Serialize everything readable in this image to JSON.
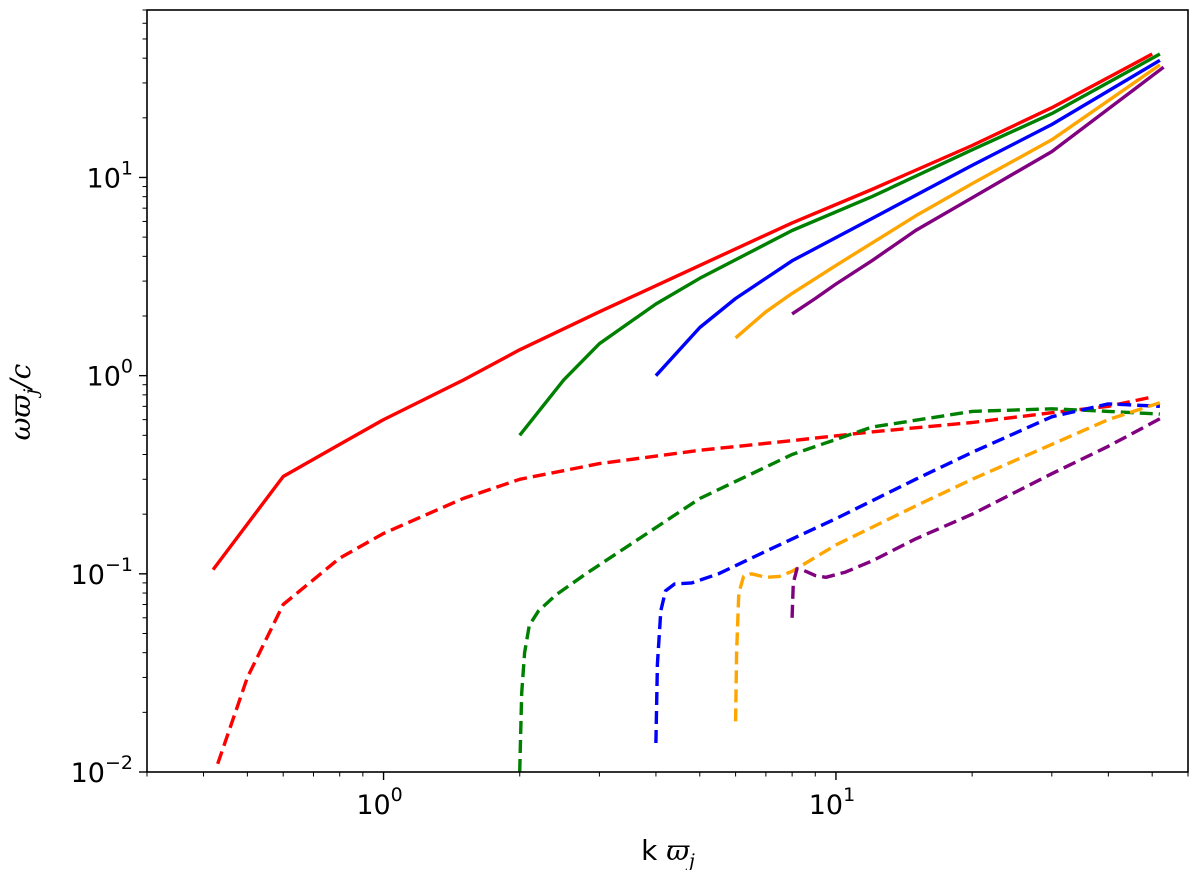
{
  "chart_data": {
    "type": "line",
    "x_scale": "log",
    "y_scale": "log",
    "xlim": [
      0.3,
      60
    ],
    "ylim": [
      0.01,
      70
    ],
    "grid": false,
    "x_ticks": [
      {
        "base": "10",
        "exp": "0",
        "value": 1
      },
      {
        "base": "10",
        "exp": "1",
        "value": 10
      }
    ],
    "y_ticks": [
      {
        "base": "10",
        "exp": "−2",
        "value": 0.01
      },
      {
        "base": "10",
        "exp": "−1",
        "value": 0.1
      },
      {
        "base": "10",
        "exp": "0",
        "value": 1
      },
      {
        "base": "10",
        "exp": "1",
        "value": 10
      }
    ],
    "xlabel": {
      "prefix": "k ",
      "symbol": "ϖ",
      "sub": "j"
    },
    "ylabel": {
      "omega": "ω",
      "symbol": "ϖ",
      "sub": "j",
      "suffix": "/c"
    },
    "series": [
      {
        "color": "#ff0000",
        "style": "solid",
        "x": [
          0.42,
          0.6,
          0.8,
          1.0,
          1.5,
          2.0,
          3.0,
          5.0,
          8.0,
          12.0,
          20.0,
          30.0,
          50.0
        ],
        "y": [
          0.105,
          0.31,
          0.45,
          0.6,
          0.95,
          1.35,
          2.1,
          3.6,
          5.9,
          8.7,
          14.5,
          22.5,
          42.0
        ]
      },
      {
        "color": "#ff0000",
        "style": "dashed",
        "x": [
          0.43,
          0.5,
          0.6,
          0.8,
          1.0,
          1.5,
          2.0,
          3.0,
          5.0,
          8.0,
          12.0,
          20.0,
          30.0,
          40.0,
          50.0
        ],
        "y": [
          0.011,
          0.03,
          0.07,
          0.12,
          0.16,
          0.24,
          0.3,
          0.36,
          0.42,
          0.47,
          0.52,
          0.58,
          0.65,
          0.7,
          0.78
        ]
      },
      {
        "color": "#008000",
        "style": "solid",
        "x": [
          2.0,
          2.5,
          3.0,
          4.0,
          5.0,
          8.0,
          12.0,
          20.0,
          30.0,
          52.0
        ],
        "y": [
          0.5,
          0.95,
          1.45,
          2.3,
          3.1,
          5.4,
          8.0,
          13.8,
          21.0,
          42.0
        ]
      },
      {
        "color": "#008000",
        "style": "dashed",
        "x": [
          2.0,
          2.02,
          2.05,
          2.1,
          2.2,
          2.4,
          2.8,
          3.5,
          5.0,
          8.0,
          12.0,
          20.0,
          30.0,
          40.0,
          52.0
        ],
        "y": [
          0.01,
          0.025,
          0.04,
          0.055,
          0.065,
          0.078,
          0.1,
          0.14,
          0.24,
          0.4,
          0.55,
          0.66,
          0.68,
          0.66,
          0.64
        ]
      },
      {
        "color": "#0000ff",
        "style": "solid",
        "x": [
          4.0,
          5.0,
          6.0,
          8.0,
          12.0,
          20.0,
          30.0,
          52.0
        ],
        "y": [
          1.0,
          1.75,
          2.45,
          3.8,
          6.2,
          11.5,
          18.5,
          39.0
        ]
      },
      {
        "color": "#0000ff",
        "style": "dashed",
        "x": [
          4.0,
          4.03,
          4.1,
          4.2,
          4.4,
          4.8,
          5.5,
          7.0,
          10.0,
          15.0,
          20.0,
          30.0,
          40.0,
          52.0
        ],
        "y": [
          0.014,
          0.035,
          0.065,
          0.082,
          0.089,
          0.09,
          0.1,
          0.13,
          0.19,
          0.3,
          0.41,
          0.62,
          0.72,
          0.7
        ]
      },
      {
        "color": "#ffa500",
        "style": "solid",
        "x": [
          6.0,
          7.0,
          8.0,
          10.0,
          15.0,
          20.0,
          30.0,
          52.0
        ],
        "y": [
          1.55,
          2.1,
          2.6,
          3.6,
          6.4,
          9.3,
          15.5,
          37.0
        ]
      },
      {
        "color": "#ffa500",
        "style": "dashed",
        "x": [
          6.0,
          6.03,
          6.1,
          6.25,
          6.5,
          7.0,
          7.5,
          8.0,
          10.0,
          15.0,
          20.0,
          30.0,
          40.0,
          52.0
        ],
        "y": [
          0.018,
          0.04,
          0.08,
          0.097,
          0.1,
          0.096,
          0.097,
          0.103,
          0.14,
          0.22,
          0.3,
          0.45,
          0.6,
          0.73
        ]
      },
      {
        "color": "#800080",
        "style": "solid",
        "x": [
          8.0,
          9.0,
          10.0,
          12.0,
          15.0,
          20.0,
          30.0,
          53.0
        ],
        "y": [
          2.05,
          2.45,
          2.9,
          3.8,
          5.4,
          7.9,
          13.5,
          36.0
        ]
      },
      {
        "color": "#800080",
        "style": "dashed",
        "x": [
          8.0,
          8.05,
          8.2,
          8.5,
          9.0,
          9.5,
          10.5,
          12.0,
          15.0,
          20.0,
          30.0,
          40.0,
          53.0
        ],
        "y": [
          0.06,
          0.09,
          0.106,
          0.104,
          0.098,
          0.096,
          0.102,
          0.116,
          0.15,
          0.2,
          0.32,
          0.44,
          0.62
        ]
      }
    ]
  }
}
